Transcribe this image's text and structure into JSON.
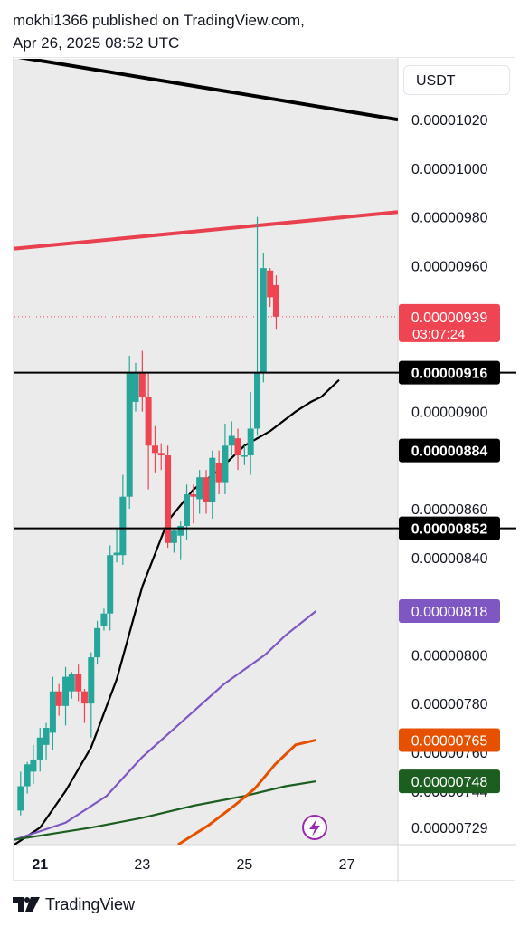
{
  "header": {
    "line1": "mokhi1366 published on TradingView.com,",
    "line2": "Apr 26, 2025 08:52 UTC"
  },
  "footer": {
    "brand": "TradingView"
  },
  "colors": {
    "bull": "#26a69a",
    "bear": "#ef4452",
    "resistance_red": "#e8404f",
    "trend_black": "#000000",
    "ma_black": "#000000",
    "ma_purple": "#7e57c2",
    "ma_orange": "#e65100",
    "ma_green": "#1b5e20",
    "pane_bg": "#ebebeb"
  },
  "chart_data": {
    "type": "candlestick",
    "quote_currency": "USDT",
    "x_axis": {
      "tick_labels": [
        "21",
        "23",
        "25",
        "27"
      ],
      "tick_days": [
        21,
        23,
        25,
        27
      ],
      "range": [
        20.5,
        28
      ]
    },
    "y_axis": {
      "tick_labels": [
        "0.00001020",
        "0.00001000",
        "0.00000980",
        "0.00000960",
        "0.00000900",
        "0.00000860",
        "0.00000840",
        "0.00000800",
        "0.00000780",
        "0.00000760",
        "0.00000744",
        "0.00000729"
      ],
      "tick_values": [
        1.02e-05,
        1e-05,
        9.8e-06,
        9.6e-06,
        9e-06,
        8.6e-06,
        8.4e-06,
        8e-06,
        7.8e-06,
        7.6e-06,
        7.44e-06,
        7.29e-06
      ],
      "range": [
        7.22e-06,
        1.045e-05
      ]
    },
    "last_price": {
      "value": "0.00000939",
      "countdown": "03:07:24"
    },
    "price_labels": [
      {
        "value": "0.00000916",
        "style": "black"
      },
      {
        "value": "0.00000884",
        "style": "black"
      },
      {
        "value": "0.00000852",
        "style": "black"
      },
      {
        "value": "0.00000818",
        "style": "purple"
      },
      {
        "value": "0.00000765",
        "style": "orange"
      },
      {
        "value": "0.00000748",
        "style": "green"
      }
    ],
    "horizontal_lines": [
      9.16e-06,
      8.52e-06
    ],
    "trend_lines": [
      {
        "name": "descending-trendline",
        "color": "black",
        "points": [
          [
            20.5,
            1.046e-05
          ],
          [
            28.0,
            1.02e-05
          ]
        ]
      },
      {
        "name": "resistance-trendline",
        "color": "red",
        "points": [
          [
            20.5,
            9.67e-06
          ],
          [
            28.0,
            9.82e-06
          ]
        ]
      }
    ],
    "moving_averages": [
      {
        "color": "black",
        "points": [
          [
            20.5,
            7.22e-06
          ],
          [
            21.0,
            7.29e-06
          ],
          [
            21.5,
            7.44e-06
          ],
          [
            22.0,
            7.62e-06
          ],
          [
            22.5,
            7.9e-06
          ],
          [
            23.0,
            8.28e-06
          ],
          [
            23.5,
            8.55e-06
          ],
          [
            24.0,
            8.68e-06
          ],
          [
            24.5,
            8.76e-06
          ],
          [
            25.0,
            8.86e-06
          ],
          [
            25.5,
            8.92e-06
          ],
          [
            26.0,
            9e-06
          ],
          [
            26.3,
            9.04e-06
          ],
          [
            26.5,
            9.06e-06
          ],
          [
            26.85,
            9.13e-06
          ]
        ]
      },
      {
        "color": "purple",
        "points": [
          [
            20.5,
            7.24e-06
          ],
          [
            21.5,
            7.31e-06
          ],
          [
            22.3,
            7.42e-06
          ],
          [
            23.0,
            7.58e-06
          ],
          [
            23.8,
            7.73e-06
          ],
          [
            24.6,
            7.88e-06
          ],
          [
            25.4,
            8e-06
          ],
          [
            25.8,
            8.08e-06
          ],
          [
            26.4,
            8.18e-06
          ]
        ]
      },
      {
        "color": "green",
        "points": [
          [
            20.5,
            7.24e-06
          ],
          [
            22.0,
            7.29e-06
          ],
          [
            23.0,
            7.33e-06
          ],
          [
            24.0,
            7.38e-06
          ],
          [
            25.0,
            7.42e-06
          ],
          [
            25.8,
            7.46e-06
          ],
          [
            26.4,
            7.48e-06
          ]
        ]
      },
      {
        "color": "orange",
        "points": [
          [
            23.7,
            7.22e-06
          ],
          [
            24.3,
            7.3e-06
          ],
          [
            24.8,
            7.38e-06
          ],
          [
            25.2,
            7.45e-06
          ],
          [
            25.6,
            7.55e-06
          ],
          [
            26.0,
            7.63e-06
          ],
          [
            26.4,
            7.65e-06
          ]
        ]
      }
    ],
    "candles": [
      {
        "t": 20.62,
        "o": 7.36e-06,
        "c": 7.46e-06,
        "h": 7.52e-06,
        "l": 7.34e-06
      },
      {
        "t": 20.75,
        "o": 7.46e-06,
        "c": 7.55e-06,
        "h": 7.56e-06,
        "l": 7.43e-06
      },
      {
        "t": 20.87,
        "o": 7.52e-06,
        "c": 7.57e-06,
        "h": 7.63e-06,
        "l": 7.47e-06
      },
      {
        "t": 21.0,
        "o": 7.57e-06,
        "c": 7.66e-06,
        "h": 7.7e-06,
        "l": 7.52e-06
      },
      {
        "t": 21.12,
        "o": 7.63e-06,
        "c": 7.7e-06,
        "h": 7.72e-06,
        "l": 7.57e-06
      },
      {
        "t": 21.25,
        "o": 7.68e-06,
        "c": 7.85e-06,
        "h": 7.91e-06,
        "l": 7.61e-06
      },
      {
        "t": 21.37,
        "o": 7.85e-06,
        "c": 7.79e-06,
        "h": 7.88e-06,
        "l": 7.75e-06
      },
      {
        "t": 21.5,
        "o": 7.79e-06,
        "c": 7.91e-06,
        "h": 7.95e-06,
        "l": 7.71e-06
      },
      {
        "t": 21.62,
        "o": 7.85e-06,
        "c": 7.92e-06,
        "h": 7.93e-06,
        "l": 7.82e-06
      },
      {
        "t": 21.75,
        "o": 7.92e-06,
        "c": 7.85e-06,
        "h": 7.96e-06,
        "l": 7.81e-06
      },
      {
        "t": 21.87,
        "o": 7.85e-06,
        "c": 7.8e-06,
        "h": 7.86e-06,
        "l": 7.72e-06
      },
      {
        "t": 22.0,
        "o": 7.8e-06,
        "c": 7.99e-06,
        "h": 8.01e-06,
        "l": 7.66e-06
      },
      {
        "t": 22.12,
        "o": 7.99e-06,
        "c": 8.11e-06,
        "h": 8.14e-06,
        "l": 7.96e-06
      },
      {
        "t": 22.25,
        "o": 8.12e-06,
        "c": 8.17e-06,
        "h": 8.19e-06,
        "l": 8.1e-06
      },
      {
        "t": 22.37,
        "o": 8.17e-06,
        "c": 8.41e-06,
        "h": 8.45e-06,
        "l": 8.1e-06
      },
      {
        "t": 22.5,
        "o": 8.41e-06,
        "c": 8.42e-06,
        "h": 8.52e-06,
        "l": 8.38e-06
      },
      {
        "t": 22.62,
        "o": 8.41e-06,
        "c": 8.65e-06,
        "h": 8.74e-06,
        "l": 8.37e-06
      },
      {
        "t": 22.75,
        "o": 8.65e-06,
        "c": 9.16e-06,
        "h": 9.23e-06,
        "l": 8.6e-06
      },
      {
        "t": 22.87,
        "o": 9.04e-06,
        "c": 9.16e-06,
        "h": 9.2e-06,
        "l": 9e-06
      },
      {
        "t": 23.0,
        "o": 9.16e-06,
        "c": 9.06e-06,
        "h": 9.25e-06,
        "l": 9e-06
      },
      {
        "t": 23.12,
        "o": 9.06e-06,
        "c": 8.86e-06,
        "h": 9.16e-06,
        "l": 8.68e-06
      },
      {
        "t": 23.25,
        "o": 8.86e-06,
        "c": 8.83e-06,
        "h": 8.94e-06,
        "l": 8.75e-06
      },
      {
        "t": 23.37,
        "o": 8.83e-06,
        "c": 8.82e-06,
        "h": 8.87e-06,
        "l": 8.76e-06
      },
      {
        "t": 23.5,
        "o": 8.82e-06,
        "c": 8.46e-06,
        "h": 8.86e-06,
        "l": 8.44e-06
      },
      {
        "t": 23.62,
        "o": 8.46e-06,
        "c": 8.51e-06,
        "h": 8.52e-06,
        "l": 8.42e-06
      },
      {
        "t": 23.75,
        "o": 8.49e-06,
        "c": 8.53e-06,
        "h": 8.55e-06,
        "l": 8.39e-06
      },
      {
        "t": 23.87,
        "o": 8.53e-06,
        "c": 8.66e-06,
        "h": 8.7e-06,
        "l": 8.47e-06
      },
      {
        "t": 24.0,
        "o": 8.66e-06,
        "c": 8.65e-06,
        "h": 8.7e-06,
        "l": 8.54e-06
      },
      {
        "t": 24.12,
        "o": 8.64e-06,
        "c": 8.73e-06,
        "h": 8.76e-06,
        "l": 8.58e-06
      },
      {
        "t": 24.25,
        "o": 8.73e-06,
        "c": 8.63e-06,
        "h": 8.76e-06,
        "l": 8.58e-06
      },
      {
        "t": 24.37,
        "o": 8.63e-06,
        "c": 8.81e-06,
        "h": 8.84e-06,
        "l": 8.56e-06
      },
      {
        "t": 24.5,
        "o": 8.79e-06,
        "c": 8.71e-06,
        "h": 8.84e-06,
        "l": 8.66e-06
      },
      {
        "t": 24.62,
        "o": 8.71e-06,
        "c": 8.86e-06,
        "h": 8.95e-06,
        "l": 8.66e-06
      },
      {
        "t": 24.75,
        "o": 8.86e-06,
        "c": 8.9e-06,
        "h": 8.96e-06,
        "l": 8.82e-06
      },
      {
        "t": 24.87,
        "o": 8.89e-06,
        "c": 8.82e-06,
        "h": 8.93e-06,
        "l": 8.76e-06
      },
      {
        "t": 25.0,
        "o": 8.82e-06,
        "c": 8.82e-06,
        "h": 8.86e-06,
        "l": 8.78e-06
      },
      {
        "t": 25.12,
        "o": 8.82e-06,
        "c": 8.93e-06,
        "h": 9.08e-06,
        "l": 8.74e-06
      },
      {
        "t": 25.25,
        "o": 8.93e-06,
        "c": 9.16e-06,
        "h": 9.8e-06,
        "l": 8.9e-06
      },
      {
        "t": 25.37,
        "o": 9.16e-06,
        "c": 9.59e-06,
        "h": 9.65e-06,
        "l": 9.12e-06
      },
      {
        "t": 25.5,
        "o": 9.58e-06,
        "c": 9.47e-06,
        "h": 9.59e-06,
        "l": 9.43e-06
      },
      {
        "t": 25.62,
        "o": 9.52e-06,
        "c": 9.39e-06,
        "h": 9.56e-06,
        "l": 9.34e-06
      }
    ]
  }
}
